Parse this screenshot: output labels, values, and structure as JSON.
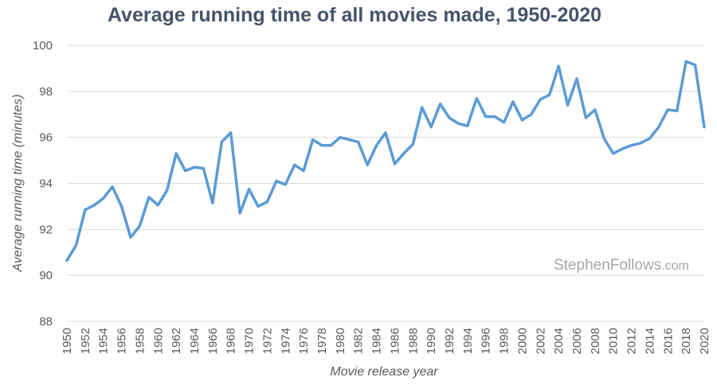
{
  "chart_data": {
    "type": "line",
    "title": "Average running time of all movies made, 1950-2020",
    "xlabel": "Movie release year",
    "ylabel": "Average running time (minutes)",
    "ylim": [
      88,
      100
    ],
    "y_ticks": [
      88,
      90,
      92,
      94,
      96,
      98,
      100
    ],
    "x_tick_labels": [
      "1950",
      "1952",
      "1954",
      "1956",
      "1958",
      "1960",
      "1962",
      "1964",
      "1966",
      "1968",
      "1970",
      "1972",
      "1974",
      "1976",
      "1978",
      "1980",
      "1982",
      "1984",
      "1986",
      "1988",
      "1990",
      "1992",
      "1994",
      "1996",
      "1998",
      "2000",
      "2002",
      "2004",
      "2006",
      "2008",
      "2010",
      "2012",
      "2014",
      "2016",
      "2018",
      "2020"
    ],
    "grid": true,
    "legend": "none",
    "series": [
      {
        "name": "Average running time",
        "color": "#5b9bd5",
        "x": [
          1950,
          1951,
          1952,
          1953,
          1954,
          1955,
          1956,
          1957,
          1958,
          1959,
          1960,
          1961,
          1962,
          1963,
          1964,
          1965,
          1966,
          1967,
          1968,
          1969,
          1970,
          1971,
          1972,
          1973,
          1974,
          1975,
          1976,
          1977,
          1978,
          1979,
          1980,
          1981,
          1982,
          1983,
          1984,
          1985,
          1986,
          1987,
          1988,
          1989,
          1990,
          1991,
          1992,
          1993,
          1994,
          1995,
          1996,
          1997,
          1998,
          1999,
          2000,
          2001,
          2002,
          2003,
          2004,
          2005,
          2006,
          2007,
          2008,
          2009,
          2010,
          2011,
          2012,
          2013,
          2014,
          2015,
          2016,
          2017,
          2018,
          2019,
          2020
        ],
        "values": [
          90.65,
          91.3,
          92.85,
          93.05,
          93.35,
          93.85,
          93.0,
          91.65,
          92.15,
          93.4,
          93.05,
          93.7,
          95.3,
          94.55,
          94.7,
          94.65,
          93.15,
          95.8,
          96.2,
          92.7,
          93.75,
          93.0,
          93.2,
          94.1,
          93.95,
          94.8,
          94.55,
          95.9,
          95.65,
          95.65,
          96.0,
          95.9,
          95.8,
          94.8,
          95.65,
          96.2,
          94.85,
          95.3,
          95.7,
          97.3,
          96.45,
          97.45,
          96.85,
          96.6,
          96.5,
          97.7,
          96.9,
          96.9,
          96.65,
          97.55,
          96.75,
          97.0,
          97.65,
          97.85,
          99.1,
          97.4,
          98.55,
          96.85,
          97.2,
          95.95,
          95.3,
          95.5,
          95.65,
          95.75,
          95.95,
          96.45,
          97.2,
          97.15,
          99.3,
          99.15,
          96.45
        ]
      }
    ]
  },
  "watermark": {
    "name": "StephenFollows",
    "tld": ".com"
  }
}
